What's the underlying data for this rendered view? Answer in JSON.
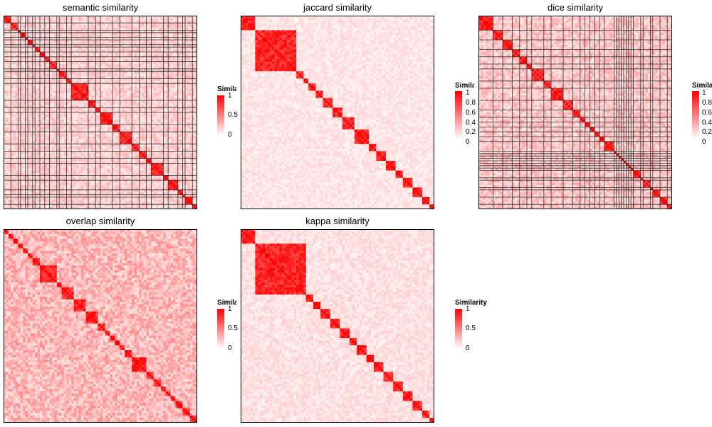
{
  "chart_data": [
    {
      "type": "heatmap",
      "title": "semantic similarity",
      "legend": {
        "title": "Similarity",
        "ticks": [
          "1",
          "0.5",
          "0"
        ]
      },
      "n": 80,
      "blocks": [
        [
          0,
          2
        ],
        [
          3,
          5
        ],
        [
          6,
          6
        ],
        [
          7,
          8
        ],
        [
          9,
          9
        ],
        [
          10,
          11
        ],
        [
          12,
          12
        ],
        [
          13,
          14
        ],
        [
          15,
          16
        ],
        [
          17,
          18
        ],
        [
          19,
          21
        ],
        [
          22,
          22
        ],
        [
          23,
          25
        ],
        [
          26,
          27
        ],
        [
          28,
          34
        ],
        [
          35,
          37
        ],
        [
          38,
          39
        ],
        [
          40,
          44
        ],
        [
          45,
          47
        ],
        [
          48,
          52
        ],
        [
          53,
          55
        ],
        [
          56,
          58
        ],
        [
          59,
          60
        ],
        [
          61,
          65
        ],
        [
          66,
          67
        ],
        [
          68,
          71
        ],
        [
          72,
          73
        ],
        [
          74,
          74
        ],
        [
          75,
          77
        ],
        [
          78,
          79
        ]
      ]
    },
    {
      "type": "heatmap",
      "title": "jaccard similarity",
      "legend": {
        "title": "Similarity",
        "ticks": [
          "1",
          "0.8",
          "0.6",
          "0.4",
          "0.2",
          "0"
        ]
      },
      "n": 80,
      "blocks": [
        [
          0,
          5
        ],
        [
          6,
          22
        ],
        [
          23,
          25
        ],
        [
          26,
          27
        ],
        [
          28,
          30
        ],
        [
          31,
          33
        ],
        [
          34,
          37
        ],
        [
          38,
          41
        ],
        [
          42,
          46
        ],
        [
          47,
          52
        ],
        [
          53,
          55
        ],
        [
          56,
          59
        ],
        [
          60,
          63
        ],
        [
          64,
          66
        ],
        [
          67,
          70
        ],
        [
          71,
          74
        ],
        [
          75,
          77
        ],
        [
          78,
          79
        ]
      ]
    },
    {
      "type": "heatmap",
      "title": "dice similarity",
      "legend": {
        "title": "Similarity",
        "ticks": [
          "1",
          "0.8",
          "0.6",
          "0.4",
          "0.2",
          "0"
        ]
      },
      "n": 80,
      "blocks": [
        [
          0,
          5
        ],
        [
          6,
          9
        ],
        [
          10,
          13
        ],
        [
          14,
          16
        ],
        [
          17,
          19
        ],
        [
          20,
          21
        ],
        [
          22,
          26
        ],
        [
          27,
          29
        ],
        [
          30,
          34
        ],
        [
          35,
          38
        ],
        [
          39,
          41
        ],
        [
          42,
          43
        ],
        [
          44,
          45
        ],
        [
          46,
          47
        ],
        [
          48,
          49
        ],
        [
          50,
          51
        ],
        [
          52,
          55
        ],
        [
          56,
          56
        ],
        [
          57,
          57
        ],
        [
          58,
          58
        ],
        [
          59,
          59
        ],
        [
          60,
          60
        ],
        [
          61,
          61
        ],
        [
          62,
          62
        ],
        [
          63,
          63
        ],
        [
          64,
          66
        ],
        [
          67,
          67
        ],
        [
          68,
          70
        ],
        [
          71,
          71
        ],
        [
          72,
          74
        ],
        [
          75,
          77
        ],
        [
          78,
          79
        ]
      ]
    },
    {
      "type": "heatmap",
      "title": "overlap similarity",
      "legend": {
        "title": "Similarity",
        "ticks": [
          "1",
          "0.5",
          "0"
        ]
      },
      "n": 80,
      "blocks": [
        [
          0,
          1
        ],
        [
          2,
          3
        ],
        [
          4,
          5
        ],
        [
          6,
          7
        ],
        [
          8,
          9
        ],
        [
          10,
          11
        ],
        [
          12,
          14
        ],
        [
          15,
          21
        ],
        [
          22,
          23
        ],
        [
          24,
          28
        ],
        [
          29,
          33
        ],
        [
          34,
          38
        ],
        [
          39,
          41
        ],
        [
          42,
          43
        ],
        [
          44,
          45
        ],
        [
          46,
          47
        ],
        [
          48,
          49
        ],
        [
          50,
          52
        ],
        [
          53,
          58
        ],
        [
          59,
          61
        ],
        [
          62,
          64
        ],
        [
          65,
          66
        ],
        [
          67,
          68
        ],
        [
          69,
          70
        ],
        [
          71,
          73
        ],
        [
          74,
          76
        ],
        [
          77,
          79
        ]
      ]
    },
    {
      "type": "heatmap",
      "title": "kappa similarity",
      "legend": {
        "title": "Similarity",
        "ticks": [
          "1",
          "0.5",
          "0"
        ]
      },
      "n": 80,
      "blocks": [
        [
          0,
          5
        ],
        [
          6,
          26
        ],
        [
          27,
          29
        ],
        [
          30,
          32
        ],
        [
          33,
          36
        ],
        [
          37,
          40
        ],
        [
          41,
          44
        ],
        [
          45,
          47
        ],
        [
          48,
          51
        ],
        [
          52,
          54
        ],
        [
          55,
          58
        ],
        [
          59,
          62
        ],
        [
          63,
          66
        ],
        [
          67,
          70
        ],
        [
          71,
          74
        ],
        [
          75,
          77
        ],
        [
          78,
          79
        ]
      ]
    }
  ]
}
